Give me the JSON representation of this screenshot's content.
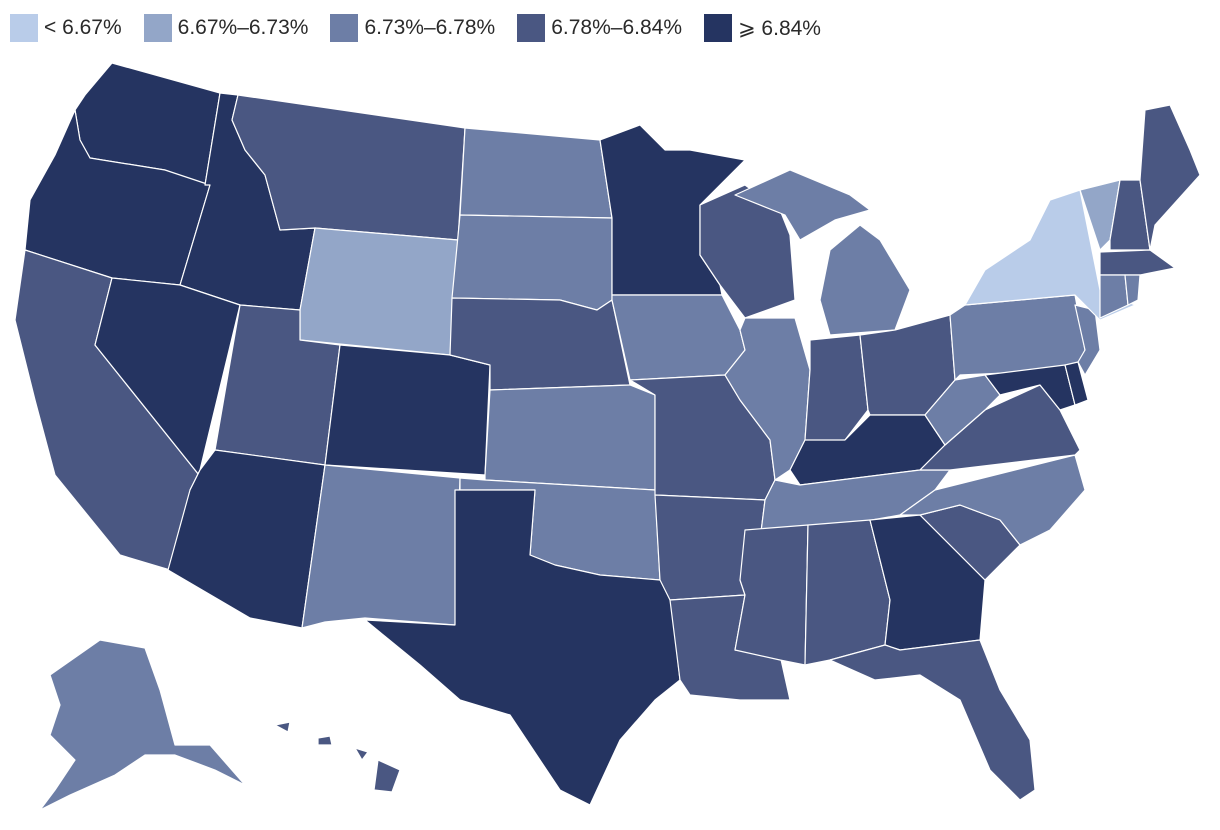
{
  "legend": [
    {
      "label": "< 6.67%",
      "color": "#b9cce9"
    },
    {
      "label": "6.67%–6.73%",
      "color": "#93a6c8"
    },
    {
      "label": "6.73%–6.78%",
      "color": "#6d7ea6"
    },
    {
      "label": "6.78%–6.84%",
      "color": "#4a5782"
    },
    {
      "label": "⩾ 6.84%",
      "color": "#253461"
    }
  ],
  "states": {
    "WA": 4,
    "OR": 4,
    "ID": 4,
    "NV": 4,
    "AZ": 4,
    "CO": 4,
    "TX": 4,
    "MN": 4,
    "KY": 4,
    "GA": 4,
    "MD": 4,
    "DE": 4,
    "CA": 3,
    "MT": 3,
    "UT": 3,
    "NE": 3,
    "MO": 3,
    "AR": 3,
    "LA": 3,
    "MS": 3,
    "AL": 3,
    "FL": 3,
    "SC": 3,
    "WI": 3,
    "IN": 3,
    "OH": 3,
    "VA": 3,
    "ME": 3,
    "NH": 3,
    "MA": 3,
    "HI": 3,
    "ND": 2,
    "SD": 2,
    "KS": 2,
    "OK": 2,
    "NM": 2,
    "IA": 2,
    "IL": 2,
    "MI": 2,
    "TN": 2,
    "NC": 2,
    "WV": 2,
    "PA": 2,
    "NJ": 2,
    "CT": 2,
    "RI": 2,
    "AK": 2,
    "WY": 1,
    "VT": 1,
    "NY": 0
  }
}
